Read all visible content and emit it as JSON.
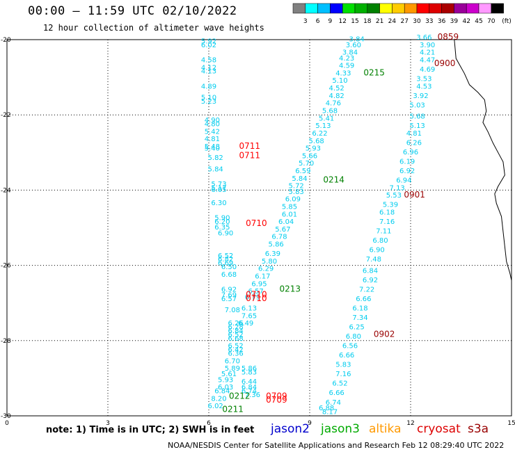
{
  "header": {
    "title": "00:00 – 11:59 UTC 02/10/2022",
    "subtitle": "12 hour collection of altimeter wave heights"
  },
  "color_scale": {
    "ticks": [
      "3",
      "6",
      "9",
      "12",
      "15",
      "18",
      "21",
      "24",
      "27",
      "30",
      "33",
      "36",
      "39",
      "42",
      "45",
      "70"
    ],
    "colors": [
      "#808080",
      "#00ffff",
      "#00bfff",
      "#0000ff",
      "#00e000",
      "#00b000",
      "#008000",
      "#ffff00",
      "#ffcc00",
      "#ff9900",
      "#ff0000",
      "#dd0000",
      "#aa0000",
      "#990099",
      "#cc00cc",
      "#ff99ff",
      "#000000"
    ],
    "unit": "(ft)"
  },
  "chart_data": {
    "type": "scatter",
    "title": "00:00 – 11:59 UTC 02/10/2022",
    "subtitle": "12 hour collection of altimeter wave heights",
    "x_ticks": [
      "0",
      "3",
      "6",
      "9",
      "12",
      "15"
    ],
    "y_ticks": [
      "-20",
      "-22",
      "-24",
      "-26",
      "-28",
      "-30"
    ],
    "xlim": [
      0,
      15
    ],
    "ylim": [
      -30,
      -20
    ],
    "grid": true,
    "series": [
      {
        "name": "jason2",
        "color": "#0000cc",
        "points": []
      },
      {
        "name": "jason3",
        "color": "#00aa00",
        "points": []
      },
      {
        "name": "altika",
        "color": "#ff9900",
        "points": []
      },
      {
        "name": "cryosat",
        "color": "#dd0000",
        "points": []
      },
      {
        "name": "s3a",
        "color": "#990000",
        "points": []
      }
    ],
    "tracks": [
      {
        "color": "#00ccee",
        "points": [
          [
            6.0,
            -20.1,
            "5.92"
          ],
          [
            6.0,
            -20.2,
            "6.02"
          ],
          [
            6.0,
            -20.6,
            "4.58"
          ],
          [
            6.0,
            -20.8,
            "4.12"
          ],
          [
            6.0,
            -20.9,
            "4.13"
          ],
          [
            6.0,
            -21.3,
            "4.89"
          ],
          [
            6.0,
            -21.6,
            "5.10"
          ],
          [
            6.0,
            -21.7,
            "5.23"
          ],
          [
            6.1,
            -22.2,
            "4.90"
          ],
          [
            6.1,
            -22.3,
            "4.80"
          ],
          [
            6.1,
            -22.5,
            "5.42"
          ],
          [
            6.1,
            -22.7,
            "4.81"
          ],
          [
            6.1,
            -22.9,
            "5.48"
          ],
          [
            6.1,
            -22.95,
            "5.40"
          ],
          [
            6.2,
            -23.2,
            "5.82"
          ],
          [
            6.2,
            -23.5,
            "5.84"
          ],
          [
            6.3,
            -23.9,
            "5.73"
          ],
          [
            6.3,
            -24.0,
            "5.17"
          ],
          [
            6.3,
            -24.05,
            "6.05"
          ],
          [
            6.3,
            -24.4,
            "6.30"
          ],
          [
            6.4,
            -24.8,
            "5.90"
          ],
          [
            6.4,
            -24.9,
            "6.20"
          ],
          [
            6.4,
            -25.05,
            "6.35"
          ],
          [
            6.5,
            -25.2,
            "6.90"
          ],
          [
            6.5,
            -25.8,
            "6.52"
          ],
          [
            6.5,
            -25.9,
            "6.82"
          ],
          [
            6.5,
            -26.0,
            "6.69"
          ],
          [
            6.6,
            -26.1,
            "6.50"
          ],
          [
            6.6,
            -26.3,
            "6.68"
          ],
          [
            6.6,
            -26.7,
            "6.92"
          ],
          [
            6.6,
            -26.85,
            "7.69"
          ],
          [
            6.6,
            -26.95,
            "6.57"
          ],
          [
            6.7,
            -27.25,
            "7.08"
          ],
          [
            6.8,
            -27.6,
            "6.26"
          ],
          [
            6.8,
            -27.7,
            "6.28"
          ],
          [
            6.8,
            -27.8,
            "6.84"
          ],
          [
            6.8,
            -27.9,
            "6.52"
          ],
          [
            6.8,
            -28.0,
            "6.68"
          ],
          [
            6.8,
            -28.2,
            "6.52"
          ],
          [
            6.8,
            -28.3,
            "6.42"
          ],
          [
            6.8,
            -28.4,
            "6.36"
          ],
          [
            6.7,
            -28.6,
            "6.70"
          ],
          [
            6.7,
            -28.8,
            "5.89"
          ],
          [
            6.6,
            -28.95,
            "5.61"
          ],
          [
            6.5,
            -29.1,
            "5.93"
          ],
          [
            6.5,
            -29.3,
            "6.03"
          ],
          [
            6.4,
            -29.4,
            "6.84"
          ],
          [
            6.3,
            -29.6,
            "8.20"
          ],
          [
            6.2,
            -29.8,
            "6.02"
          ],
          [
            7.2,
            -28.8,
            "5.86"
          ],
          [
            7.2,
            -28.9,
            "5.83"
          ],
          [
            7.2,
            -29.15,
            "6.44"
          ],
          [
            7.2,
            -29.3,
            "6.84"
          ],
          [
            7.3,
            -29.5,
            "7.36"
          ],
          [
            7.2,
            -29.4,
            "6.74"
          ]
        ]
      },
      {
        "color": "#00ccee",
        "points": [
          [
            10.4,
            -20.05,
            "3.84"
          ],
          [
            10.3,
            -20.2,
            "3.60"
          ],
          [
            10.2,
            -20.4,
            "3.84"
          ],
          [
            10.1,
            -20.55,
            "4.23"
          ],
          [
            10.1,
            -20.75,
            "4.59"
          ],
          [
            10.0,
            -20.95,
            "4.33"
          ],
          [
            9.9,
            -21.15,
            "5.10"
          ],
          [
            9.8,
            -21.35,
            "4.52"
          ],
          [
            9.8,
            -21.55,
            "4.82"
          ],
          [
            9.7,
            -21.75,
            "4.76"
          ],
          [
            9.6,
            -21.95,
            "5.68"
          ],
          [
            9.5,
            -22.15,
            "5.41"
          ],
          [
            9.4,
            -22.35,
            "5.13"
          ],
          [
            9.3,
            -22.55,
            "6.22"
          ],
          [
            9.2,
            -22.75,
            "5.68"
          ],
          [
            9.1,
            -22.95,
            "5.93"
          ],
          [
            9.0,
            -23.15,
            "5.66"
          ],
          [
            8.9,
            -23.35,
            "5.70"
          ],
          [
            8.8,
            -23.55,
            "6.59"
          ],
          [
            8.7,
            -23.75,
            "5.84"
          ],
          [
            8.6,
            -23.95,
            "5.72"
          ],
          [
            8.6,
            -24.1,
            "5.83"
          ],
          [
            8.5,
            -24.3,
            "6.09"
          ],
          [
            8.4,
            -24.5,
            "5.85"
          ],
          [
            8.4,
            -24.7,
            "6.01"
          ],
          [
            8.3,
            -24.9,
            "6.04"
          ],
          [
            8.2,
            -25.1,
            "5.67"
          ],
          [
            8.1,
            -25.3,
            "6.78"
          ],
          [
            8.0,
            -25.5,
            "5.86"
          ],
          [
            7.9,
            -25.75,
            "6.39"
          ],
          [
            7.8,
            -25.95,
            "5.80"
          ],
          [
            7.7,
            -26.15,
            "6.29"
          ],
          [
            7.6,
            -26.35,
            "6.17"
          ],
          [
            7.5,
            -26.55,
            "6.95"
          ],
          [
            7.4,
            -26.75,
            "6.57"
          ],
          [
            7.3,
            -26.9,
            "6.79"
          ],
          [
            7.2,
            -27.2,
            "6.13"
          ],
          [
            7.2,
            -27.4,
            "7.65"
          ],
          [
            7.1,
            -27.6,
            "6.49"
          ]
        ]
      },
      {
        "color": "#00ccee",
        "points": [
          [
            12.4,
            -20.0,
            "3.66"
          ],
          [
            12.5,
            -20.2,
            "3.90"
          ],
          [
            12.5,
            -20.4,
            "4.21"
          ],
          [
            12.5,
            -20.6,
            "4.47"
          ],
          [
            12.5,
            -20.85,
            "4.69"
          ],
          [
            12.4,
            -21.1,
            "3.53"
          ],
          [
            12.4,
            -21.3,
            "4.53"
          ],
          [
            12.3,
            -21.55,
            "3.92"
          ],
          [
            12.2,
            -21.8,
            "5.03"
          ],
          [
            12.2,
            -22.1,
            "5.68"
          ],
          [
            12.2,
            -22.35,
            "5.13"
          ],
          [
            12.1,
            -22.55,
            "4.81"
          ],
          [
            12.1,
            -22.8,
            "6.26"
          ],
          [
            12.0,
            -23.05,
            "6.96"
          ],
          [
            11.9,
            -23.3,
            "6.19"
          ],
          [
            11.9,
            -23.55,
            "6.92"
          ],
          [
            11.8,
            -23.8,
            "6.94"
          ],
          [
            11.6,
            -24.0,
            "7.13"
          ],
          [
            11.5,
            -24.2,
            "5.53"
          ],
          [
            11.4,
            -24.45,
            "5.39"
          ],
          [
            11.3,
            -24.65,
            "6.18"
          ],
          [
            11.3,
            -24.9,
            "7.16"
          ],
          [
            11.2,
            -25.15,
            "7.11"
          ],
          [
            11.1,
            -25.4,
            "6.80"
          ],
          [
            11.0,
            -25.65,
            "6.90"
          ],
          [
            10.9,
            -25.9,
            "7.48"
          ],
          [
            10.8,
            -26.2,
            "6.84"
          ],
          [
            10.8,
            -26.45,
            "6.92"
          ],
          [
            10.7,
            -26.7,
            "7.22"
          ],
          [
            10.6,
            -26.95,
            "6.66"
          ],
          [
            10.5,
            -27.2,
            "6.18"
          ],
          [
            10.5,
            -27.45,
            "7.34"
          ],
          [
            10.4,
            -27.7,
            "6.25"
          ],
          [
            10.3,
            -27.95,
            "6.80"
          ],
          [
            10.2,
            -28.2,
            "6.56"
          ],
          [
            10.1,
            -28.45,
            "6.66"
          ],
          [
            10.0,
            -28.7,
            "5.83"
          ],
          [
            10.0,
            -28.95,
            "7.16"
          ],
          [
            9.9,
            -29.2,
            "6.52"
          ],
          [
            9.8,
            -29.45,
            "6.66"
          ],
          [
            9.7,
            -29.7,
            "6.74"
          ],
          [
            9.6,
            -29.95,
            "8.17"
          ],
          [
            9.5,
            -29.85,
            "6.88"
          ]
        ]
      }
    ],
    "time_labels": [
      {
        "x": 6.9,
        "y": -22.9,
        "text": "0711",
        "color": "#ff0000"
      },
      {
        "x": 6.9,
        "y": -23.15,
        "text": "0711",
        "color": "#ff0000"
      },
      {
        "x": 7.1,
        "y": -24.95,
        "text": "0710",
        "color": "#ff0000"
      },
      {
        "x": 7.1,
        "y": -26.85,
        "text": "0710",
        "color": "#ff0000"
      },
      {
        "x": 7.1,
        "y": -26.95,
        "text": "0710",
        "color": "#ff0000"
      },
      {
        "x": 7.7,
        "y": -29.55,
        "text": "0709",
        "color": "#ff0000"
      },
      {
        "x": 7.7,
        "y": -29.65,
        "text": "0709",
        "color": "#ff0000"
      },
      {
        "x": 8.1,
        "y": -26.7,
        "text": "0213",
        "color": "#008000"
      },
      {
        "x": 9.4,
        "y": -23.8,
        "text": "0214",
        "color": "#008000"
      },
      {
        "x": 10.6,
        "y": -20.95,
        "text": "0215",
        "color": "#008000"
      },
      {
        "x": 6.6,
        "y": -29.55,
        "text": "0212",
        "color": "#008000"
      },
      {
        "x": 6.4,
        "y": -29.9,
        "text": "0211",
        "color": "#008000"
      },
      {
        "x": 12.8,
        "y": -20.0,
        "text": "0859",
        "color": "#990000"
      },
      {
        "x": 12.7,
        "y": -20.7,
        "text": "0900",
        "color": "#990000"
      },
      {
        "x": 11.8,
        "y": -24.2,
        "text": "0901",
        "color": "#990000"
      },
      {
        "x": 10.9,
        "y": -27.9,
        "text": "0902",
        "color": "#990000"
      }
    ],
    "coastline": [
      [
        13.3,
        -20.0
      ],
      [
        13.35,
        -20.5
      ],
      [
        13.6,
        -20.9
      ],
      [
        13.75,
        -21.2
      ],
      [
        14.0,
        -21.4
      ],
      [
        14.2,
        -21.6
      ],
      [
        14.25,
        -21.9
      ],
      [
        14.15,
        -22.2
      ],
      [
        14.3,
        -22.45
      ],
      [
        14.45,
        -22.75
      ],
      [
        14.6,
        -23.0
      ],
      [
        14.75,
        -23.25
      ],
      [
        14.8,
        -23.6
      ],
      [
        14.6,
        -23.9
      ],
      [
        14.5,
        -24.1
      ],
      [
        14.55,
        -24.35
      ],
      [
        14.7,
        -24.7
      ],
      [
        14.75,
        -25.1
      ],
      [
        14.8,
        -25.5
      ],
      [
        14.85,
        -25.9
      ],
      [
        14.95,
        -26.2
      ],
      [
        15.0,
        -26.4
      ]
    ]
  },
  "legend": [
    {
      "label": "jason2",
      "color": "#0000cc"
    },
    {
      "label": "jason3",
      "color": "#00aa00"
    },
    {
      "label": "altika",
      "color": "#ff9900"
    },
    {
      "label": "cryosat",
      "color": "#dd0000"
    },
    {
      "label": "s3a",
      "color": "#990000"
    }
  ],
  "note": "note: 1) Time is in UTC; 2) SWH is in feet",
  "footer": "NOAA/NESDIS Center for Satellite Applications and Research    Feb 12 08:29:40 UTC 2022"
}
